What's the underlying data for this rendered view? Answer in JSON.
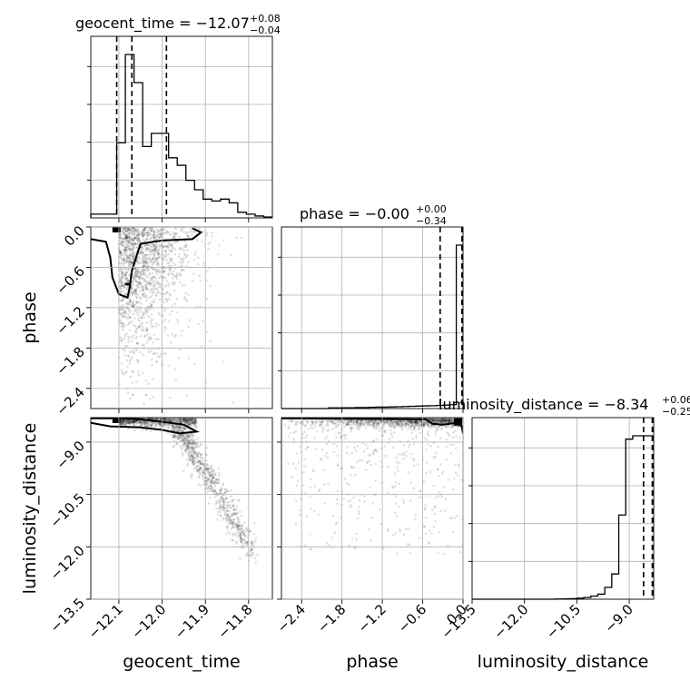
{
  "chart_data": {
    "type": "scatter",
    "layout": "corner",
    "parameters": [
      {
        "key": "geocent_time",
        "label": "geocent_time",
        "range": [
          -12.165,
          -11.745
        ],
        "ticks": [
          -12.1,
          -12.0,
          -11.9,
          -11.8
        ],
        "tick_labels": [
          "−12.1",
          "−12.0",
          "−11.9",
          "−11.8"
        ],
        "title_main": "geocent_time = −12.07",
        "title_plus": "+0.08",
        "title_minus": "−0.04",
        "quantiles": [
          -12.105,
          -12.07,
          -11.99
        ],
        "hist_bin_width": 0.02,
        "hist_bin_start": -12.165,
        "hist_counts": [
          0.02,
          0.02,
          0.02,
          0.4,
          0.87,
          0.72,
          0.38,
          0.45,
          0.45,
          0.32,
          0.28,
          0.2,
          0.15,
          0.1,
          0.09,
          0.1,
          0.08,
          0.03,
          0.02,
          0.01,
          0.005
        ]
      },
      {
        "key": "phase",
        "label": "phase",
        "range": [
          -2.7,
          0.0
        ],
        "ticks": [
          -2.4,
          -1.8,
          -1.2,
          -0.6,
          0.0
        ],
        "tick_labels": [
          "−2.4",
          "−1.8",
          "−1.2",
          "−0.6",
          "0.0"
        ],
        "title_main": "phase = −0.00",
        "title_plus": "+0.00",
        "title_minus": "−0.34",
        "quantiles": [
          -0.34,
          -0.015,
          -0.003
        ],
        "hist_bin_width": 0.1,
        "hist_bin_start": -2.7,
        "hist_counts": [
          0.0,
          0.0,
          0.0,
          0.0,
          0.0,
          0.0,
          0.0,
          0.003,
          0.003,
          0.004,
          0.004,
          0.005,
          0.005,
          0.006,
          0.007,
          0.007,
          0.008,
          0.009,
          0.01,
          0.011,
          0.012,
          0.013,
          0.014,
          0.015,
          0.017,
          0.019,
          0.8
        ]
      },
      {
        "key": "luminosity_distance",
        "label": "luminosity_distance",
        "range": [
          -13.5,
          -8.3
        ],
        "ticks": [
          -13.5,
          -12.0,
          -10.5,
          -9.0
        ],
        "tick_labels": [
          "−13.5",
          "−12.0",
          "−10.5",
          "−9.0"
        ],
        "y_tick_labels": [
          "−13.5",
          "−12.0",
          "−10.5",
          "−9.0"
        ],
        "title_main": "luminosity_distance = −8.34",
        "title_plus": "+0.06",
        "title_minus": "−0.25",
        "quantiles": [
          -8.59,
          -8.34,
          -8.28
        ],
        "hist_bin_width": 0.2,
        "hist_bin_start": -13.5,
        "hist_counts": [
          0.0,
          0.0,
          0.0,
          0.0,
          0.0,
          0.0,
          0.0,
          0.0,
          0.0,
          0.0,
          0.0,
          0.0,
          0.001,
          0.002,
          0.003,
          0.006,
          0.01,
          0.018,
          0.03,
          0.07,
          0.15,
          0.5,
          0.95,
          0.97,
          0.97,
          0.97
        ]
      }
    ],
    "scatter": {
      "phase_vs_geocent_time": {
        "dense_core": {
          "x": [
            -12.11,
            -12.07
          ],
          "y": [
            0.0,
            -0.2
          ]
        },
        "contour_level": "outer",
        "contour_points": [
          [
            -12.165,
            -0.18
          ],
          [
            -12.13,
            -0.22
          ],
          [
            -12.12,
            -0.45
          ],
          [
            -12.115,
            -0.75
          ],
          [
            -12.1,
            -1.0
          ],
          [
            -12.08,
            -1.05
          ],
          [
            -12.075,
            -0.9
          ],
          [
            -12.07,
            -0.65
          ],
          [
            -12.06,
            -0.45
          ],
          [
            -12.05,
            -0.25
          ],
          [
            -12.0,
            -0.2
          ],
          [
            -11.93,
            -0.18
          ],
          [
            -11.91,
            -0.08
          ],
          [
            -11.93,
            -0.02
          ]
        ],
        "inner_mark": {
          "x": -12.08,
          "y": -0.85
        }
      },
      "luminosity_distance_vs_geocent_time": {
        "contour_points": [
          [
            -12.165,
            -8.45
          ],
          [
            -12.12,
            -8.55
          ],
          [
            -12.05,
            -8.58
          ],
          [
            -12.0,
            -8.65
          ],
          [
            -11.96,
            -8.75
          ],
          [
            -11.92,
            -8.7
          ],
          [
            -11.95,
            -8.5
          ],
          [
            -12.0,
            -8.42
          ],
          [
            -12.05,
            -8.35
          ],
          [
            -12.1,
            -8.32
          ],
          [
            -12.165,
            -8.32
          ]
        ],
        "trail": [
          [
            -11.95,
            -8.7
          ],
          [
            -11.93,
            -9.0
          ],
          [
            -11.91,
            -9.4
          ],
          [
            -11.89,
            -9.9
          ],
          [
            -11.87,
            -10.4
          ],
          [
            -11.85,
            -10.9
          ],
          [
            -11.83,
            -11.3
          ],
          [
            -11.81,
            -11.7
          ],
          [
            -11.79,
            -12.0
          ]
        ]
      },
      "luminosity_distance_vs_phase": {
        "contour_points": [
          [
            -2.7,
            -8.32
          ],
          [
            -2.0,
            -8.33
          ],
          [
            -1.2,
            -8.34
          ],
          [
            -0.55,
            -8.35
          ],
          [
            -0.45,
            -8.48
          ],
          [
            -0.3,
            -8.5
          ],
          [
            -0.1,
            -8.45
          ],
          [
            -0.02,
            -8.55
          ],
          [
            0.0,
            -8.75
          ]
        ]
      }
    }
  }
}
